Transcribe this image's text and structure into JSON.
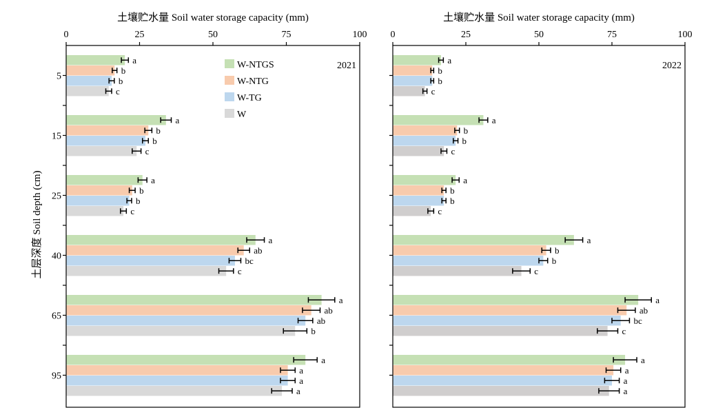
{
  "chart_data": [
    {
      "type": "bar",
      "orientation": "horizontal",
      "panel_label": "2021",
      "xlabel": "土壤贮水量 Soil water storage capacity (mm)",
      "ylabel": "土层深度 Soil depth (cm)",
      "xlim": [
        0,
        100
      ],
      "xticks": [
        "0",
        "25",
        "50",
        "75",
        "100"
      ],
      "categories": [
        "5",
        "15",
        "25",
        "40",
        "65",
        "95"
      ],
      "legend_position": "top-center",
      "series": [
        {
          "name": "W-NTGS",
          "color": "#c5e0b4",
          "values": [
            20,
            34,
            26,
            64.5,
            87,
            81.5
          ],
          "errors": [
            1.2,
            1.8,
            1.5,
            3,
            4.5,
            4
          ],
          "letters": [
            "a",
            "a",
            "a",
            "a",
            "a",
            "a"
          ]
        },
        {
          "name": "W-NTG",
          "color": "#f8cbad",
          "values": [
            16.5,
            28,
            22.5,
            60.5,
            83.5,
            75.5
          ],
          "errors": [
            0.8,
            1.2,
            1,
            2,
            3,
            2.5
          ],
          "letters": [
            "b",
            "b",
            "b",
            "ab",
            "ab",
            "a"
          ]
        },
        {
          "name": "W-TG",
          "color": "#bdd7ee",
          "values": [
            15.5,
            27,
            21.5,
            57.5,
            81.5,
            75.5
          ],
          "errors": [
            0.9,
            1,
            0.8,
            2,
            2.5,
            2.5
          ],
          "letters": [
            "b",
            "b",
            "b",
            "bc",
            "ab",
            "a"
          ]
        },
        {
          "name": "W",
          "color": "#d9d9d9",
          "values": [
            14.5,
            24,
            19.5,
            54.5,
            78,
            73.5
          ],
          "errors": [
            1,
            1.5,
            1,
            2.5,
            4,
            3.5
          ],
          "letters": [
            "c",
            "c",
            "c",
            "c",
            "b",
            "a"
          ]
        }
      ]
    },
    {
      "type": "bar",
      "orientation": "horizontal",
      "panel_label": "2022",
      "xlabel": "土壤贮水量 Soil water storage capacity (mm)",
      "xlim": [
        0,
        100
      ],
      "xticks": [
        "0",
        "25",
        "50",
        "75",
        "100"
      ],
      "categories": [
        "5",
        "15",
        "25",
        "40",
        "65",
        "95"
      ],
      "series": [
        {
          "name": "W-NTGS",
          "color": "#c5e0b4",
          "values": [
            16.5,
            31,
            21.5,
            62,
            84,
            79.5
          ],
          "errors": [
            0.8,
            1.5,
            1.2,
            3,
            4.5,
            4
          ],
          "letters": [
            "a",
            "a",
            "a",
            "a",
            "a",
            "a"
          ]
        },
        {
          "name": "W-NTG",
          "color": "#f8cbad",
          "values": [
            13.5,
            22,
            17.5,
            52.5,
            80,
            75.5
          ],
          "errors": [
            0.5,
            0.8,
            0.7,
            1.5,
            3,
            2.5
          ],
          "letters": [
            "b",
            "b",
            "b",
            "b",
            "ab",
            "a"
          ]
        },
        {
          "name": "W-TG",
          "color": "#bdd7ee",
          "values": [
            13.5,
            21.5,
            17.5,
            51.5,
            78,
            75
          ],
          "errors": [
            0.5,
            0.8,
            0.7,
            1.5,
            3,
            2.5
          ],
          "letters": [
            "b",
            "b",
            "b",
            "b",
            "bc",
            "a"
          ]
        },
        {
          "name": "W",
          "color": "#d0cece",
          "values": [
            11,
            17.5,
            13,
            44,
            73.5,
            74
          ],
          "errors": [
            0.7,
            1,
            1,
            3,
            3.5,
            3.5
          ],
          "letters": [
            "c",
            "c",
            "c",
            "c",
            "c",
            "a"
          ]
        }
      ]
    }
  ]
}
